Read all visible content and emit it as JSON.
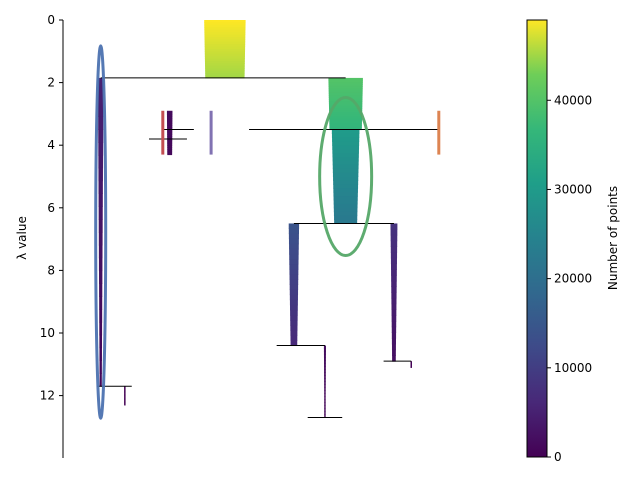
{
  "chart_data": {
    "type": "condensed-tree",
    "ylabel": "λ value",
    "ylim": [
      0,
      14
    ],
    "yticks": [
      0,
      2,
      4,
      6,
      8,
      10,
      12
    ],
    "y_inverted": true,
    "colorbar": {
      "label": "Number of points",
      "range": [
        0,
        49000
      ],
      "ticks": [
        0,
        10000,
        20000,
        30000,
        40000
      ],
      "tick_labels": [
        "0",
        "10000",
        "20000",
        "30000",
        "40000"
      ],
      "colormap": "viridis"
    },
    "x_range": [
      0,
      100
    ],
    "branches": [
      {
        "x": 42,
        "lambda_start": 0.0,
        "lambda_end": 1.85,
        "points_start": 49000,
        "points_end": 45000,
        "max_half_width": 6
      },
      {
        "x": 6,
        "lambda_start": 1.85,
        "lambda_end": 11.7,
        "points_start": 5000,
        "points_end": 200,
        "max_half_width": 0.8
      },
      {
        "x": 77,
        "lambda_start": 1.85,
        "lambda_end": 3.5,
        "points_start": 40000,
        "points_end": 36000,
        "max_half_width": 5
      },
      {
        "x": 26,
        "lambda_start": 2.9,
        "lambda_end": 4.3,
        "points_start": 1500,
        "points_end": 1200,
        "max_half_width": 0.8
      },
      {
        "x": 77,
        "lambda_start": 3.5,
        "lambda_end": 6.5,
        "points_start": 30000,
        "points_end": 22000,
        "max_half_width": 4
      },
      {
        "x": 62,
        "lambda_start": 6.5,
        "lambda_end": 10.4,
        "points_start": 14000,
        "points_end": 6000,
        "max_half_width": 1.5
      },
      {
        "x": 91,
        "lambda_start": 6.5,
        "lambda_end": 10.9,
        "points_start": 8000,
        "points_end": 2000,
        "max_half_width": 1
      },
      {
        "x": 71,
        "lambda_start": 10.4,
        "lambda_end": 12.7,
        "points_start": 2000,
        "points_end": 500,
        "max_half_width": 0.3
      },
      {
        "x": 13,
        "lambda_start": 11.7,
        "lambda_end": 12.3,
        "points_start": 200,
        "points_end": 100,
        "max_half_width": 0.2
      },
      {
        "x": 96,
        "lambda_start": 10.9,
        "lambda_end": 11.1,
        "points_start": 200,
        "points_end": 100,
        "max_half_width": 0.2
      }
    ],
    "splits": [
      {
        "lambda": 1.85,
        "x_left": 6,
        "x_right": 77
      },
      {
        "lambda": 3.5,
        "x_left": 24,
        "x_right": 33
      },
      {
        "lambda": 3.5,
        "x_left": 49,
        "x_right": 104
      },
      {
        "lambda": 3.8,
        "x_left": 20,
        "x_right": 31
      },
      {
        "lambda": 6.5,
        "x_left": 62,
        "x_right": 91
      },
      {
        "lambda": 10.4,
        "x_left": 57,
        "x_right": 71
      },
      {
        "lambda": 10.9,
        "x_left": 88,
        "x_right": 96
      },
      {
        "lambda": 11.7,
        "x_left": 5,
        "x_right": 15
      },
      {
        "lambda": 12.7,
        "x_left": 66,
        "x_right": 76
      }
    ],
    "selected_clusters": [
      {
        "x": 6,
        "lambda_start": 1.85,
        "lambda_end": 11.7,
        "color": "#4c72b0",
        "marker": "ellipse"
      },
      {
        "x": 77,
        "lambda_start": 3.5,
        "lambda_end": 6.5,
        "color": "#55a868",
        "marker": "ellipse"
      },
      {
        "x": 24,
        "lambda_start": 2.9,
        "lambda_end": 4.3,
        "color": "#c44e52",
        "marker": "bar"
      },
      {
        "x": 104,
        "lambda_start": 2.9,
        "lambda_end": 4.3,
        "color": "#dd8452",
        "marker": "bar"
      },
      {
        "x": 38,
        "lambda_start": 2.9,
        "lambda_end": 4.3,
        "color": "#8172b2",
        "marker": "bar"
      }
    ]
  }
}
